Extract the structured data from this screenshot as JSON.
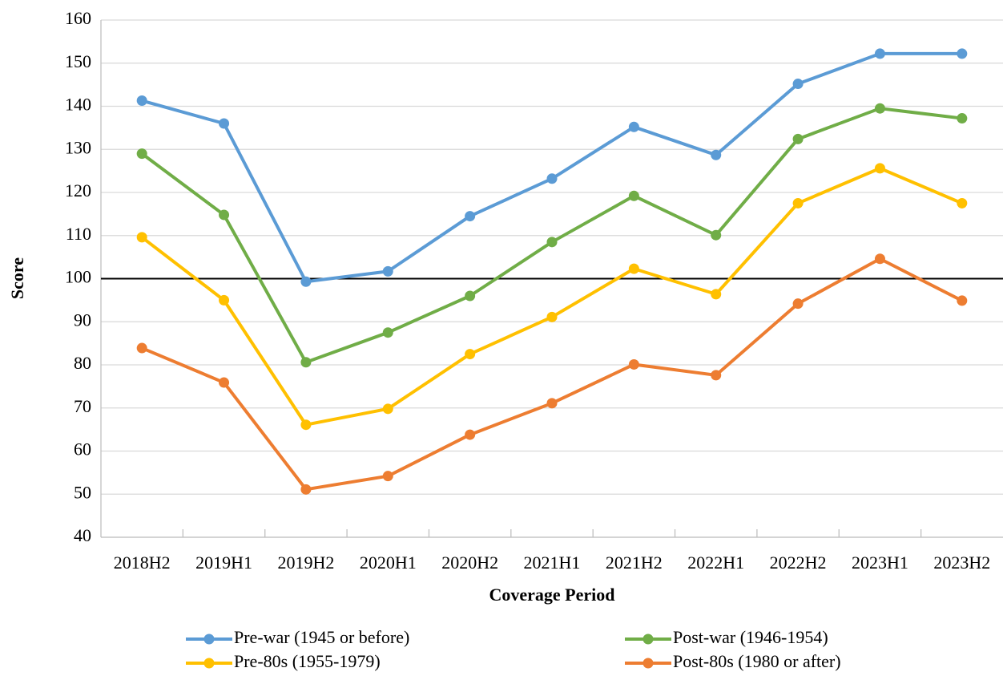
{
  "chart_data": {
    "type": "line",
    "x_label": "Coverage Period",
    "y_label": "Score",
    "categories": [
      "2018H2",
      "2019H1",
      "2019H2",
      "2020H1",
      "2020H2",
      "2021H1",
      "2021H2",
      "2022H1",
      "2022H2",
      "2023H1",
      "2023H2"
    ],
    "series": [
      {
        "name": "Pre-war (1945 or before)",
        "color": "#5b9bd5",
        "values": [
          141.3,
          136,
          99.3,
          101.7,
          114.5,
          123.2,
          135.2,
          128.7,
          145.2,
          152.2,
          152.2
        ]
      },
      {
        "name": "Post-war (1946-1954)",
        "color": "#70ad47",
        "values": [
          129,
          114.8,
          80.6,
          87.5,
          96,
          108.5,
          119.2,
          110.1,
          132.4,
          139.5,
          137.2
        ]
      },
      {
        "name": "Pre-80s (1955-1979)",
        "color": "#ffc000",
        "values": [
          109.6,
          95,
          66.1,
          69.8,
          82.5,
          91.1,
          102.3,
          96.4,
          117.5,
          125.6,
          117.5
        ]
      },
      {
        "name": "Post-80s (1980 or after)",
        "color": "#ed7d31",
        "values": [
          83.9,
          75.9,
          51.1,
          54.2,
          63.8,
          71.1,
          80.1,
          77.6,
          94.2,
          104.6,
          94.9
        ]
      }
    ],
    "ylim": [
      40,
      160
    ],
    "yticks": [
      40,
      50,
      60,
      70,
      80,
      90,
      100,
      110,
      120,
      130,
      140,
      150,
      160
    ],
    "grid": true,
    "reference_line": 100,
    "legend": "bottom"
  }
}
